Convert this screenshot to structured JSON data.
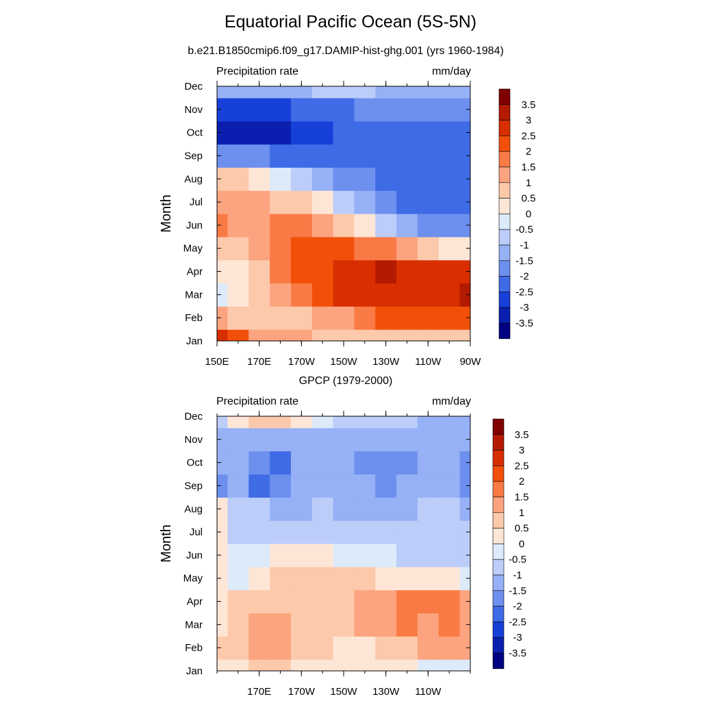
{
  "figure": {
    "title": "Equatorial Pacific Ocean (5S-5N)"
  },
  "chart_data": [
    {
      "type": "heatmap",
      "subtitle": "b.e21.B1850cmip6.f09_g17.DAMIP-hist-ghg.001 (yrs 1960-1984)",
      "left_label": "Precipitation rate",
      "right_label": "mm/day",
      "ylabel": "Month",
      "xlabel": "",
      "x_ticks": [
        "150E",
        "170E",
        "170W",
        "150W",
        "130W",
        "110W",
        "90W"
      ],
      "y_ticks": [
        "Jan",
        "Feb",
        "Mar",
        "Apr",
        "May",
        "Jun",
        "Jul",
        "Aug",
        "Sep",
        "Oct",
        "Nov",
        "Dec"
      ],
      "x": [
        150,
        160,
        170,
        180,
        190,
        200,
        210,
        220,
        230,
        240,
        250,
        260,
        270
      ],
      "zlim": [
        -3.5,
        3.5
      ],
      "values": [
        [
          3.0,
          2.5,
          1.5,
          1.5,
          1.5,
          1.0,
          1.0,
          1.0,
          1.0,
          1.0,
          1.0,
          1.0,
          1.0
        ],
        [
          1.5,
          1.0,
          1.0,
          1.0,
          1.0,
          1.5,
          1.5,
          2.0,
          2.5,
          2.5,
          2.5,
          2.5,
          2.5
        ],
        [
          0.0,
          0.5,
          1.0,
          1.5,
          2.0,
          2.5,
          3.0,
          3.0,
          3.0,
          3.0,
          3.0,
          3.0,
          3.5
        ],
        [
          0.5,
          0.5,
          1.0,
          2.0,
          2.5,
          2.5,
          3.0,
          3.0,
          3.5,
          3.0,
          3.0,
          3.0,
          3.0
        ],
        [
          1.0,
          1.0,
          1.5,
          2.0,
          2.5,
          2.5,
          2.5,
          2.0,
          2.0,
          1.5,
          1.0,
          0.5,
          0.5
        ],
        [
          2.0,
          1.5,
          1.5,
          2.0,
          2.0,
          1.5,
          1.0,
          0.5,
          -0.5,
          -1.0,
          -1.5,
          -1.5,
          -1.5
        ],
        [
          1.5,
          1.5,
          1.5,
          1.0,
          1.0,
          0.5,
          -0.5,
          -1.0,
          -1.5,
          -2.0,
          -2.0,
          -2.0,
          -2.0
        ],
        [
          1.0,
          1.0,
          0.5,
          0.0,
          -0.5,
          -1.0,
          -1.5,
          -1.5,
          -2.0,
          -2.0,
          -2.0,
          -2.0,
          -2.0
        ],
        [
          -1.5,
          -1.5,
          -1.5,
          -2.0,
          -2.0,
          -2.0,
          -2.0,
          -2.0,
          -2.0,
          -2.0,
          -2.0,
          -2.0,
          -2.0
        ],
        [
          -3.0,
          -3.0,
          -3.0,
          -3.0,
          -2.5,
          -2.5,
          -2.0,
          -2.0,
          -2.0,
          -2.0,
          -2.0,
          -2.0,
          -2.0
        ],
        [
          -2.5,
          -2.5,
          -2.5,
          -2.5,
          -2.0,
          -2.0,
          -2.0,
          -1.5,
          -1.5,
          -1.5,
          -1.5,
          -1.5,
          -1.5
        ],
        [
          -1.0,
          -1.0,
          -1.0,
          -1.0,
          -1.0,
          -0.5,
          -0.5,
          -0.5,
          -1.0,
          -1.0,
          -1.0,
          -1.0,
          -1.0
        ]
      ]
    },
    {
      "type": "heatmap",
      "subtitle": "GPCP (1979-2000)",
      "left_label": "Precipitation rate",
      "right_label": "mm/day",
      "ylabel": "Month",
      "xlabel": "",
      "x_ticks": [
        "170E",
        "170W",
        "150W",
        "130W",
        "110W"
      ],
      "y_ticks": [
        "Jan",
        "Feb",
        "Mar",
        "Apr",
        "May",
        "Jun",
        "Jul",
        "Aug",
        "Sep",
        "Oct",
        "Nov",
        "Dec"
      ],
      "x": [
        150,
        160,
        170,
        180,
        190,
        200,
        210,
        220,
        230,
        240,
        250,
        260,
        270
      ],
      "zlim": [
        -3.5,
        3.5
      ],
      "values": [
        [
          0.5,
          0.5,
          1.0,
          1.0,
          0.5,
          0.5,
          0.5,
          0.5,
          0.5,
          0.5,
          0.0,
          0.0,
          0.0
        ],
        [
          1.0,
          1.0,
          1.5,
          1.5,
          1.0,
          1.0,
          0.5,
          0.5,
          1.0,
          1.0,
          1.5,
          1.5,
          1.5
        ],
        [
          0.5,
          1.0,
          1.5,
          1.5,
          1.0,
          1.0,
          1.0,
          1.5,
          1.5,
          2.0,
          1.5,
          2.0,
          1.5
        ],
        [
          0.5,
          1.0,
          1.0,
          1.0,
          1.0,
          1.0,
          1.0,
          1.5,
          1.5,
          2.0,
          2.0,
          2.0,
          1.5
        ],
        [
          0.5,
          0.0,
          0.5,
          1.0,
          1.0,
          1.0,
          1.0,
          1.0,
          0.5,
          0.5,
          0.5,
          0.5,
          0.0
        ],
        [
          0.5,
          0.0,
          0.0,
          0.5,
          0.5,
          0.5,
          0.0,
          0.0,
          0.0,
          -0.5,
          -0.5,
          -0.5,
          -0.5
        ],
        [
          0.5,
          -0.5,
          -0.5,
          -0.5,
          -0.5,
          -0.5,
          -0.5,
          -0.5,
          -0.5,
          -0.5,
          -0.5,
          -0.5,
          -0.5
        ],
        [
          0.5,
          -0.5,
          -0.5,
          -1.0,
          -1.0,
          -0.5,
          -1.0,
          -1.0,
          -1.0,
          -1.0,
          -0.5,
          -0.5,
          -1.0
        ],
        [
          -1.5,
          -1.0,
          -2.0,
          -1.5,
          -1.0,
          -1.0,
          -1.0,
          -1.0,
          -1.5,
          -1.0,
          -1.0,
          -1.0,
          -1.5
        ],
        [
          -1.0,
          -1.0,
          -1.5,
          -2.0,
          -1.0,
          -1.0,
          -1.0,
          -1.5,
          -1.5,
          -1.5,
          -1.0,
          -1.0,
          -1.5
        ],
        [
          -1.0,
          -1.0,
          -1.0,
          -1.0,
          -1.0,
          -1.0,
          -1.0,
          -1.0,
          -1.0,
          -1.0,
          -1.0,
          -1.0,
          -1.0
        ],
        [
          -0.5,
          0.5,
          1.0,
          1.0,
          0.5,
          0.0,
          -0.5,
          -0.5,
          -0.5,
          -0.5,
          -1.0,
          -1.0,
          -1.0
        ]
      ]
    }
  ],
  "colorbar": {
    "labels": [
      "3.5",
      "3",
      "2.5",
      "2",
      "1.5",
      "1",
      "0.5",
      "0",
      "-0.5",
      "-1",
      "-1.5",
      "-2",
      "-2.5",
      "-3",
      "-3.5"
    ],
    "colors": [
      "#800000",
      "#b31a00",
      "#d92e00",
      "#f2500a",
      "#fa7a45",
      "#fca47f",
      "#fdc9ab",
      "#fee6d6",
      "#dceafa",
      "#bccdfa",
      "#96b1f5",
      "#6d90ee",
      "#3f6be6",
      "#1740d9",
      "#0a1fb0",
      "#000080"
    ]
  }
}
